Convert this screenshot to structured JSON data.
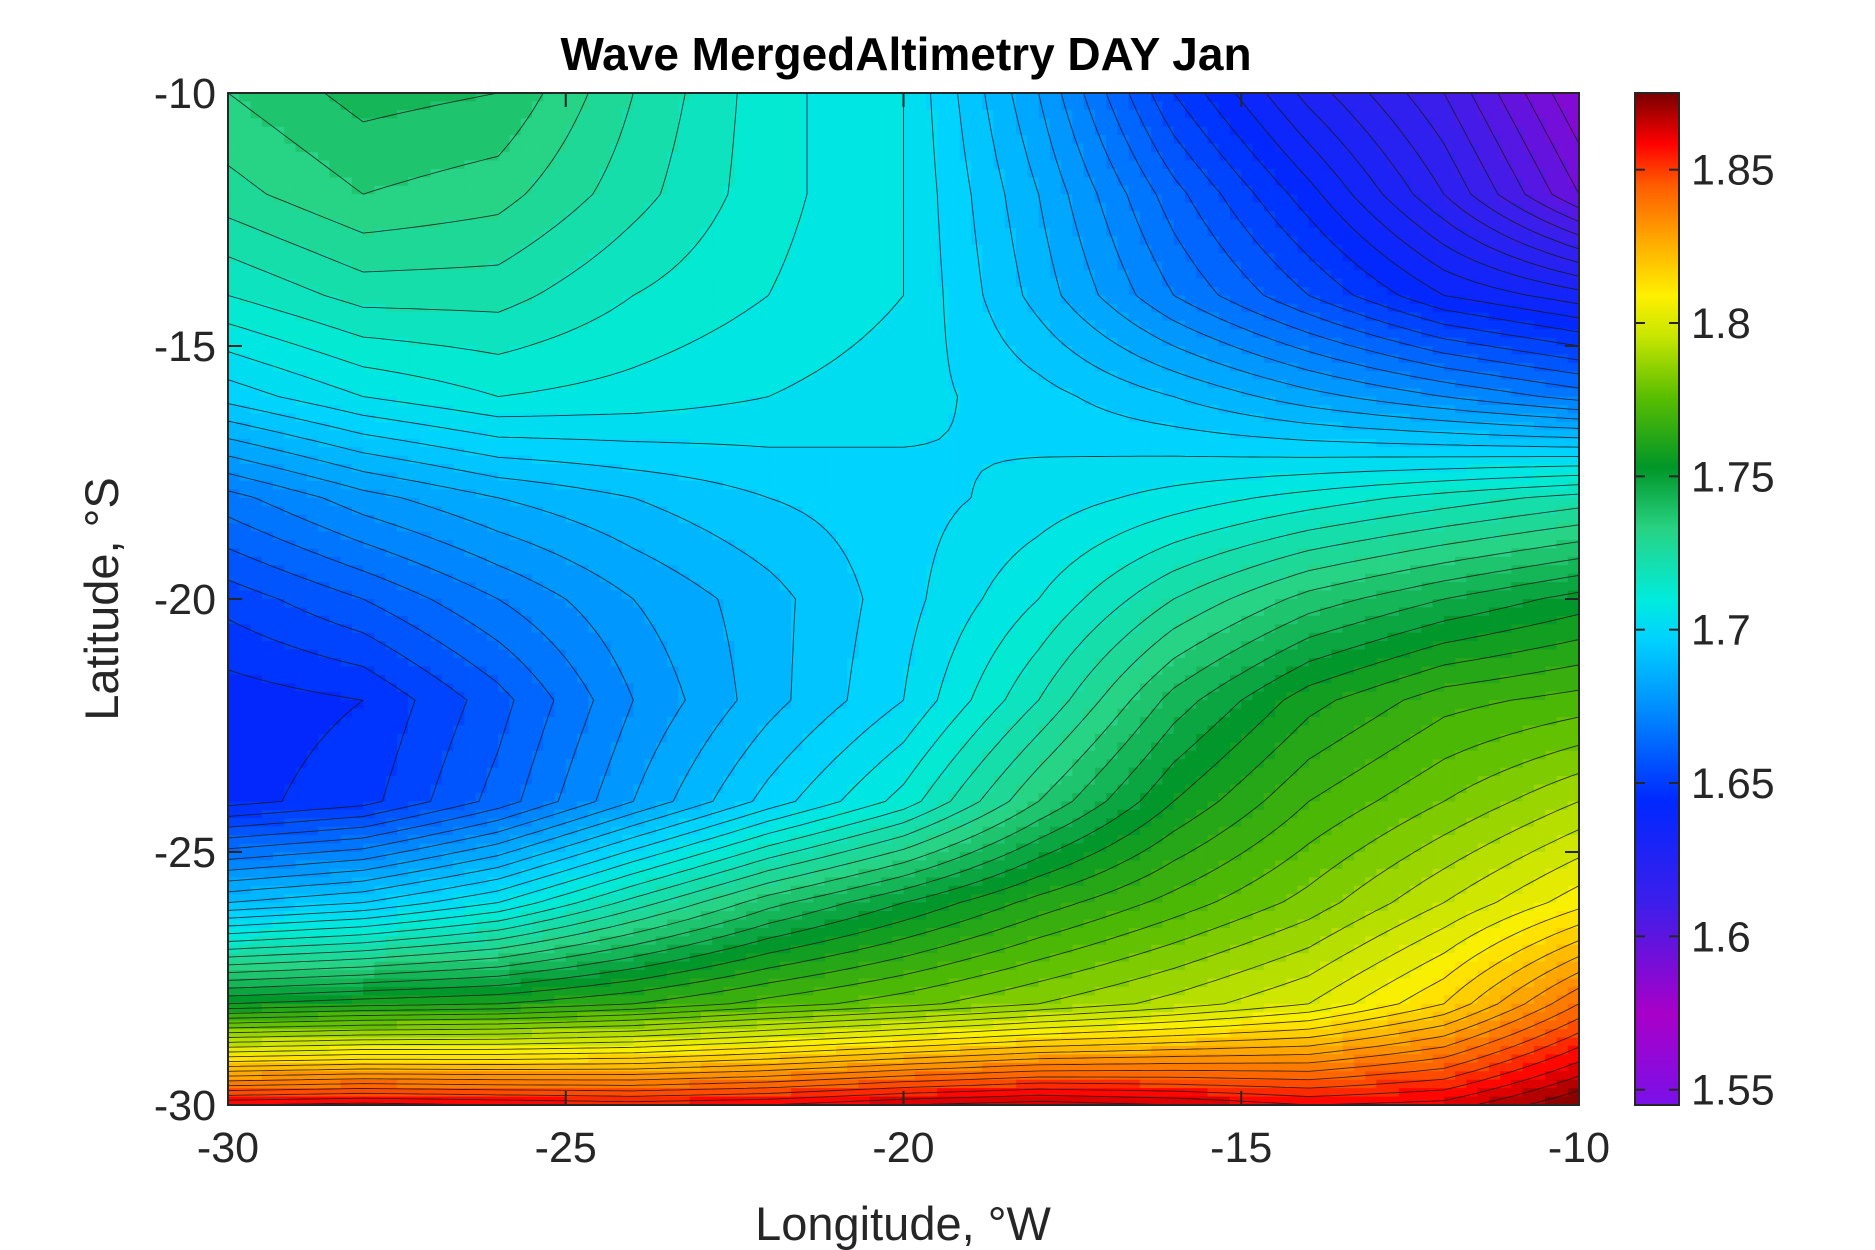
{
  "chart_data": {
    "type": "heatmap",
    "subtype": "filled-contour",
    "title": "Wave MergedAltimetry DAY Jan",
    "xlabel": "Longitude, °W",
    "ylabel": "Latitude, °S",
    "xlim": [
      -30,
      -10
    ],
    "ylim": [
      -30,
      -10
    ],
    "x_ticks": [
      "-30",
      "-25",
      "-20",
      "-15",
      "-10"
    ],
    "y_ticks": [
      "-10",
      "-15",
      "-20",
      "-25",
      "-30"
    ],
    "x_tick_values": [
      -30,
      -25,
      -20,
      -15,
      -10
    ],
    "y_tick_values": [
      -10,
      -15,
      -20,
      -25,
      -30
    ],
    "colorbar": {
      "range": [
        1.545,
        1.875
      ],
      "ticks": [
        "1.55",
        "1.6",
        "1.65",
        "1.7",
        "1.75",
        "1.8",
        "1.85"
      ],
      "tick_values": [
        1.55,
        1.6,
        1.65,
        1.7,
        1.75,
        1.8,
        1.85
      ],
      "colormap": "jet-like (violet–blue–cyan–green–yellow–red)",
      "contour_step": 0.005
    },
    "grid": false,
    "x": [
      -30,
      -28,
      -26,
      -24,
      -22,
      -20,
      -18,
      -16,
      -14,
      -12,
      -10
    ],
    "y": [
      -10,
      -12,
      -14,
      -16,
      -18,
      -20,
      -22,
      -24,
      -26,
      -28,
      -30
    ],
    "z": [
      [
        1.735,
        1.742,
        1.74,
        1.725,
        1.712,
        1.705,
        1.68,
        1.65,
        1.628,
        1.61,
        1.585
      ],
      [
        1.728,
        1.735,
        1.732,
        1.722,
        1.712,
        1.705,
        1.685,
        1.662,
        1.642,
        1.62,
        1.595
      ],
      [
        1.715,
        1.722,
        1.722,
        1.715,
        1.71,
        1.705,
        1.688,
        1.67,
        1.655,
        1.64,
        1.632
      ],
      [
        1.697,
        1.705,
        1.71,
        1.708,
        1.705,
        1.702,
        1.697,
        1.69,
        1.682,
        1.675,
        1.668
      ],
      [
        1.668,
        1.678,
        1.685,
        1.69,
        1.695,
        1.698,
        1.702,
        1.707,
        1.712,
        1.717,
        1.722
      ],
      [
        1.652,
        1.66,
        1.67,
        1.68,
        1.688,
        1.698,
        1.71,
        1.725,
        1.737,
        1.745,
        1.752
      ],
      [
        1.642,
        1.645,
        1.658,
        1.675,
        1.688,
        1.7,
        1.72,
        1.742,
        1.758,
        1.768,
        1.772
      ],
      [
        1.643,
        1.648,
        1.662,
        1.68,
        1.697,
        1.712,
        1.735,
        1.755,
        1.77,
        1.78,
        1.79
      ],
      [
        1.69,
        1.695,
        1.705,
        1.722,
        1.738,
        1.75,
        1.762,
        1.772,
        1.782,
        1.795,
        1.808
      ],
      [
        1.755,
        1.758,
        1.76,
        1.765,
        1.772,
        1.778,
        1.785,
        1.792,
        1.8,
        1.815,
        1.84
      ],
      [
        1.86,
        1.862,
        1.86,
        1.858,
        1.86,
        1.865,
        1.868,
        1.865,
        1.86,
        1.862,
        1.875
      ]
    ]
  }
}
